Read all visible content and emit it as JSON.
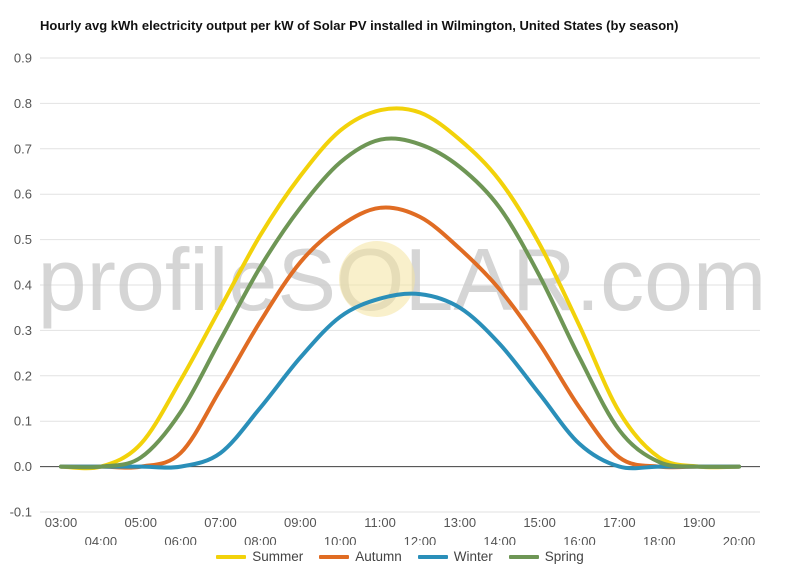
{
  "chart_data": {
    "type": "line",
    "title": "Hourly avg kWh electricity output per kW of Solar PV installed in Wilmington, United States (by season)",
    "watermark": "profileSOLAR.com",
    "x": [
      "03:00",
      "04:00",
      "05:00",
      "06:00",
      "07:00",
      "08:00",
      "09:00",
      "10:00",
      "11:00",
      "12:00",
      "13:00",
      "14:00",
      "15:00",
      "16:00",
      "17:00",
      "18:00",
      "19:00",
      "20:00"
    ],
    "ylim": [
      -0.1,
      0.9
    ],
    "yticks": [
      "-0.1",
      "0.0",
      "0.1",
      "0.2",
      "0.3",
      "0.4",
      "0.5",
      "0.6",
      "0.7",
      "0.8",
      "0.9"
    ],
    "grid": true,
    "legend_position": "bottom",
    "series": [
      {
        "name": "Summer",
        "color": "#f2d20a",
        "values": [
          0.0,
          0.0,
          0.05,
          0.19,
          0.35,
          0.51,
          0.64,
          0.74,
          0.785,
          0.78,
          0.72,
          0.63,
          0.49,
          0.31,
          0.12,
          0.02,
          0.0,
          0.0
        ]
      },
      {
        "name": "Autumn",
        "color": "#e06c23",
        "values": [
          0.0,
          0.0,
          0.0,
          0.03,
          0.17,
          0.32,
          0.45,
          0.53,
          0.57,
          0.55,
          0.48,
          0.39,
          0.27,
          0.13,
          0.02,
          0.0,
          0.0,
          0.0
        ]
      },
      {
        "name": "Winter",
        "color": "#2a8fb9",
        "values": [
          0.0,
          0.0,
          0.0,
          0.0,
          0.03,
          0.13,
          0.24,
          0.33,
          0.37,
          0.38,
          0.35,
          0.27,
          0.16,
          0.05,
          0.0,
          0.0,
          0.0,
          0.0
        ]
      },
      {
        "name": "Spring",
        "color": "#6e9655",
        "values": [
          0.0,
          0.0,
          0.02,
          0.12,
          0.28,
          0.44,
          0.57,
          0.67,
          0.72,
          0.71,
          0.66,
          0.57,
          0.42,
          0.24,
          0.08,
          0.01,
          0.0,
          0.0
        ]
      }
    ]
  }
}
